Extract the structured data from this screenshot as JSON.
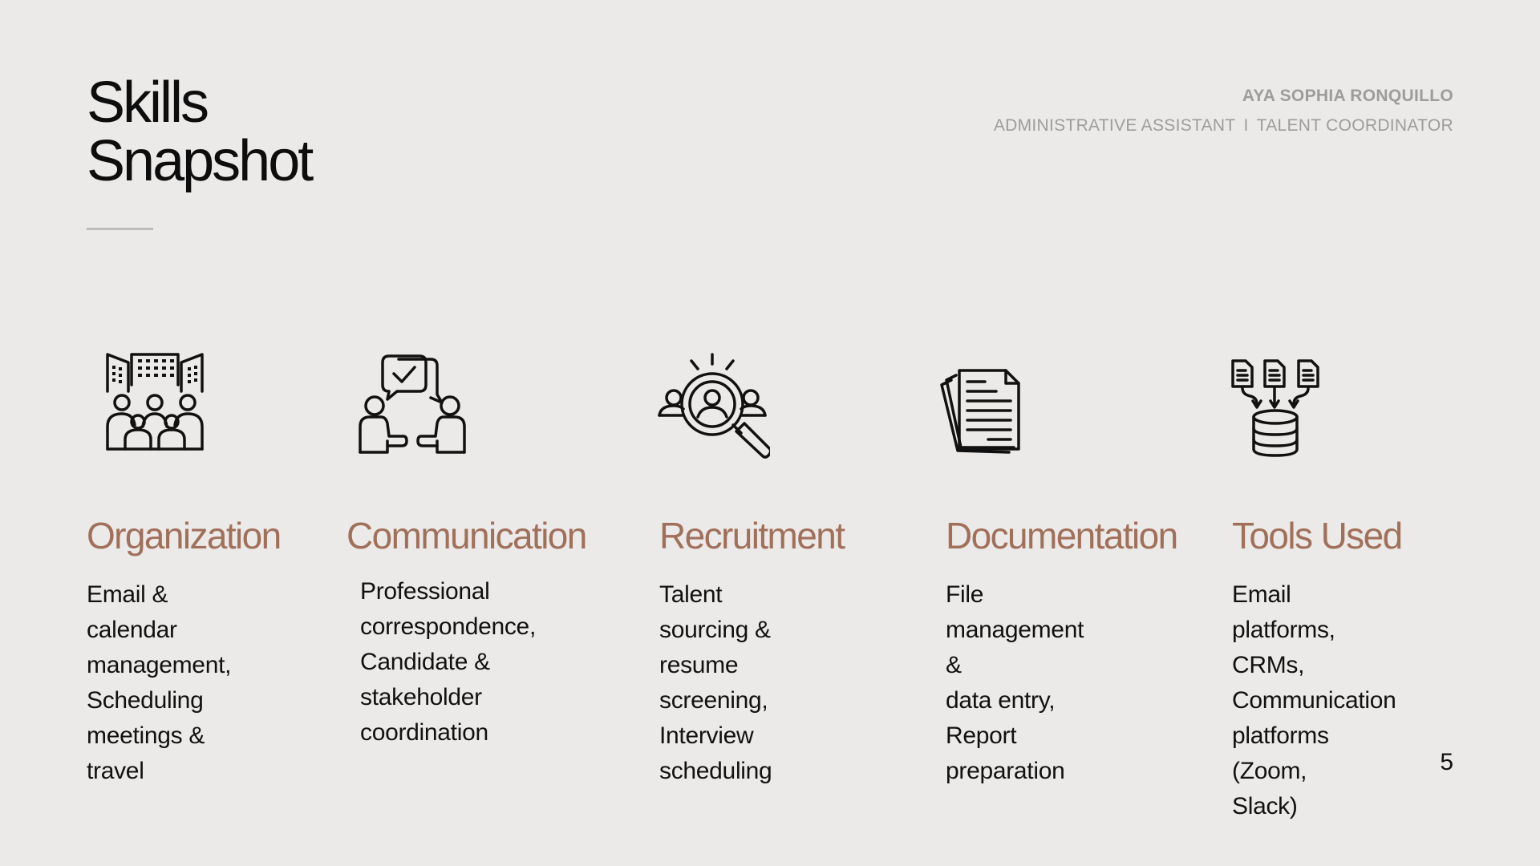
{
  "slide": {
    "title_line1": "Skills",
    "title_line2": "Snapshot",
    "header": {
      "name": "AYA SOPHIA RONQUILLO",
      "role1": "ADMINISTRATIVE ASSISTANT",
      "separator": "I",
      "role2": "TALENT COORDINATOR"
    },
    "page_number": "5"
  },
  "colors": {
    "background": "#ECEAE8",
    "accent": "#A0705B",
    "muted": "#9E9C9A",
    "text": "#111111"
  },
  "skills": [
    {
      "icon": "team-buildings-icon",
      "title": "Organization",
      "desc_lines": [
        "Email & calendar",
        "management,",
        "Scheduling",
        "meetings & travel"
      ]
    },
    {
      "icon": "conversation-check-icon",
      "title": "Communication",
      "desc_lines": [
        "Professional",
        "correspondence,",
        "Candidate & stakeholder",
        "coordination"
      ]
    },
    {
      "icon": "magnifier-people-icon",
      "title": "Recruitment",
      "desc_lines": [
        "Talent sourcing &",
        "resume screening,",
        "Interview scheduling"
      ]
    },
    {
      "icon": "document-stack-icon",
      "title": "Documentation",
      "desc_lines": [
        "File management &",
        "data entry, Report",
        "preparation"
      ]
    },
    {
      "icon": "files-to-database-icon",
      "title": "Tools Used",
      "desc_lines": [
        "Email platforms,",
        "CRMs,",
        "Communication",
        "platforms (Zoom,",
        "Slack)"
      ]
    }
  ]
}
